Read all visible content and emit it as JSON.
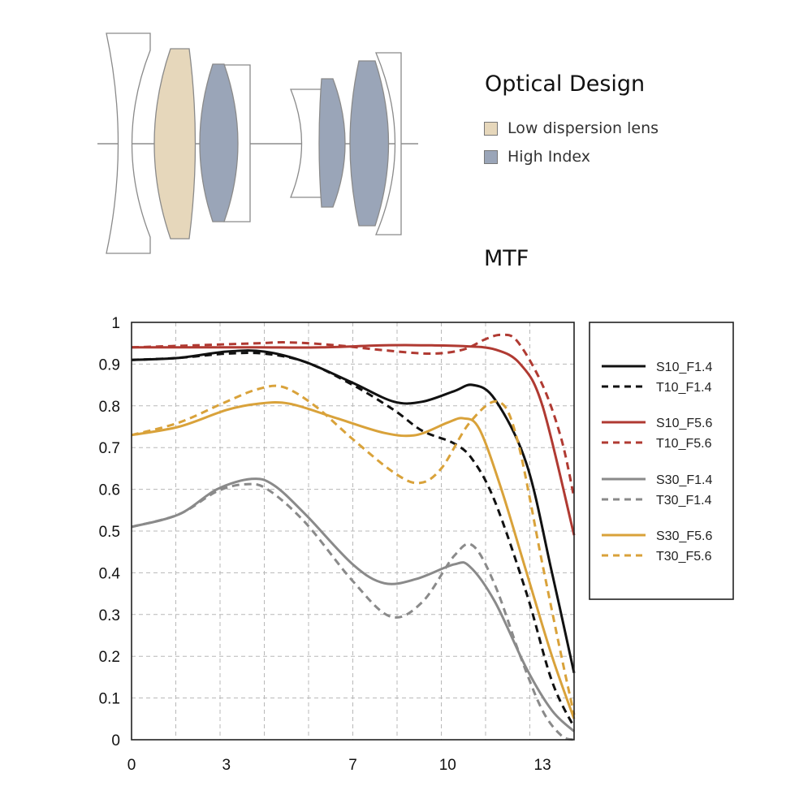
{
  "optical_design": {
    "title": "Optical Design",
    "legend": [
      {
        "label": "Low dispersion lens",
        "color": "#e6d7bb"
      },
      {
        "label": "High Index",
        "color": "#9aa5b8"
      }
    ]
  },
  "mtf_title": "MTF",
  "chart_data": {
    "type": "line",
    "xlim": [
      0,
      14
    ],
    "ylim": [
      0,
      1
    ],
    "x_ticks": [
      0,
      3,
      7,
      10,
      13
    ],
    "y_ticks": [
      "0",
      "0.1",
      "0.2",
      "0.3",
      "0.4",
      "0.5",
      "0.6",
      "0.7",
      "0.8",
      "0.9",
      "1"
    ],
    "grid": true,
    "legend_position": "right",
    "series": [
      {
        "name": "S10_F1.4",
        "color": "#111111",
        "dash": false,
        "x": [
          0,
          1.5,
          3,
          4.2,
          5.5,
          7,
          8.3,
          9.2,
          10.2,
          10.8,
          11.5,
          12.5,
          13.3,
          14
        ],
        "y": [
          0.91,
          0.915,
          0.93,
          0.93,
          0.905,
          0.855,
          0.81,
          0.81,
          0.835,
          0.85,
          0.815,
          0.66,
          0.4,
          0.16
        ]
      },
      {
        "name": "T10_F1.4",
        "color": "#111111",
        "dash": true,
        "x": [
          0,
          1.5,
          3,
          4.2,
          5.5,
          7,
          8.3,
          9.2,
          10.2,
          10.8,
          11.5,
          12.5,
          13.3,
          14
        ],
        "y": [
          0.91,
          0.915,
          0.925,
          0.925,
          0.905,
          0.85,
          0.79,
          0.74,
          0.71,
          0.67,
          0.57,
          0.35,
          0.14,
          0.03
        ]
      },
      {
        "name": "S10_F5.6",
        "color": "#b03a32",
        "dash": false,
        "x": [
          0,
          2,
          4,
          6,
          8,
          9.5,
          10.5,
          11.5,
          12.3,
          13,
          14
        ],
        "y": [
          0.94,
          0.94,
          0.94,
          0.94,
          0.945,
          0.945,
          0.943,
          0.935,
          0.9,
          0.8,
          0.49
        ]
      },
      {
        "name": "T10_F5.6",
        "color": "#b03a32",
        "dash": true,
        "x": [
          0,
          2,
          4,
          5,
          6.5,
          8,
          9.5,
          10.5,
          11.2,
          11.7,
          12.2,
          13,
          13.6,
          14
        ],
        "y": [
          0.94,
          0.945,
          0.95,
          0.952,
          0.945,
          0.933,
          0.925,
          0.935,
          0.96,
          0.97,
          0.955,
          0.85,
          0.72,
          0.58
        ]
      },
      {
        "name": "S30_F1.4",
        "color": "#8a8a8a",
        "dash": false,
        "x": [
          0,
          1.5,
          2.7,
          3.8,
          4.5,
          5.5,
          7,
          8,
          9,
          10.2,
          10.7,
          11.5,
          12.5,
          13.3,
          14
        ],
        "y": [
          0.51,
          0.54,
          0.6,
          0.625,
          0.61,
          0.54,
          0.42,
          0.375,
          0.385,
          0.42,
          0.415,
          0.33,
          0.17,
          0.07,
          0.02
        ]
      },
      {
        "name": "T30_F1.4",
        "color": "#8a8a8a",
        "dash": true,
        "x": [
          0,
          1.5,
          2.7,
          3.6,
          4.3,
          5.5,
          7,
          8.2,
          9.2,
          10.2,
          10.8,
          11.5,
          12.3,
          13,
          13.6,
          14
        ],
        "y": [
          0.51,
          0.54,
          0.595,
          0.612,
          0.6,
          0.52,
          0.38,
          0.295,
          0.33,
          0.44,
          0.465,
          0.37,
          0.2,
          0.07,
          0.01,
          0.0
        ]
      },
      {
        "name": "S30_F5.6",
        "color": "#d9a23a",
        "dash": false,
        "x": [
          0,
          1.5,
          3,
          4,
          5,
          6.5,
          8,
          9,
          10,
          10.5,
          11,
          11.7,
          12.5,
          13.3,
          14
        ],
        "y": [
          0.73,
          0.75,
          0.79,
          0.805,
          0.805,
          0.77,
          0.735,
          0.73,
          0.76,
          0.77,
          0.745,
          0.6,
          0.4,
          0.2,
          0.05
        ]
      },
      {
        "name": "T30_F5.6",
        "color": "#d9a23a",
        "dash": true,
        "x": [
          0,
          1.5,
          3,
          4,
          4.8,
          5.8,
          7,
          8.3,
          9.1,
          9.8,
          10.7,
          11.6,
          12.2,
          13,
          13.6,
          14
        ],
        "y": [
          0.73,
          0.76,
          0.81,
          0.84,
          0.845,
          0.8,
          0.72,
          0.64,
          0.615,
          0.65,
          0.76,
          0.81,
          0.72,
          0.42,
          0.2,
          0.06
        ]
      }
    ]
  }
}
